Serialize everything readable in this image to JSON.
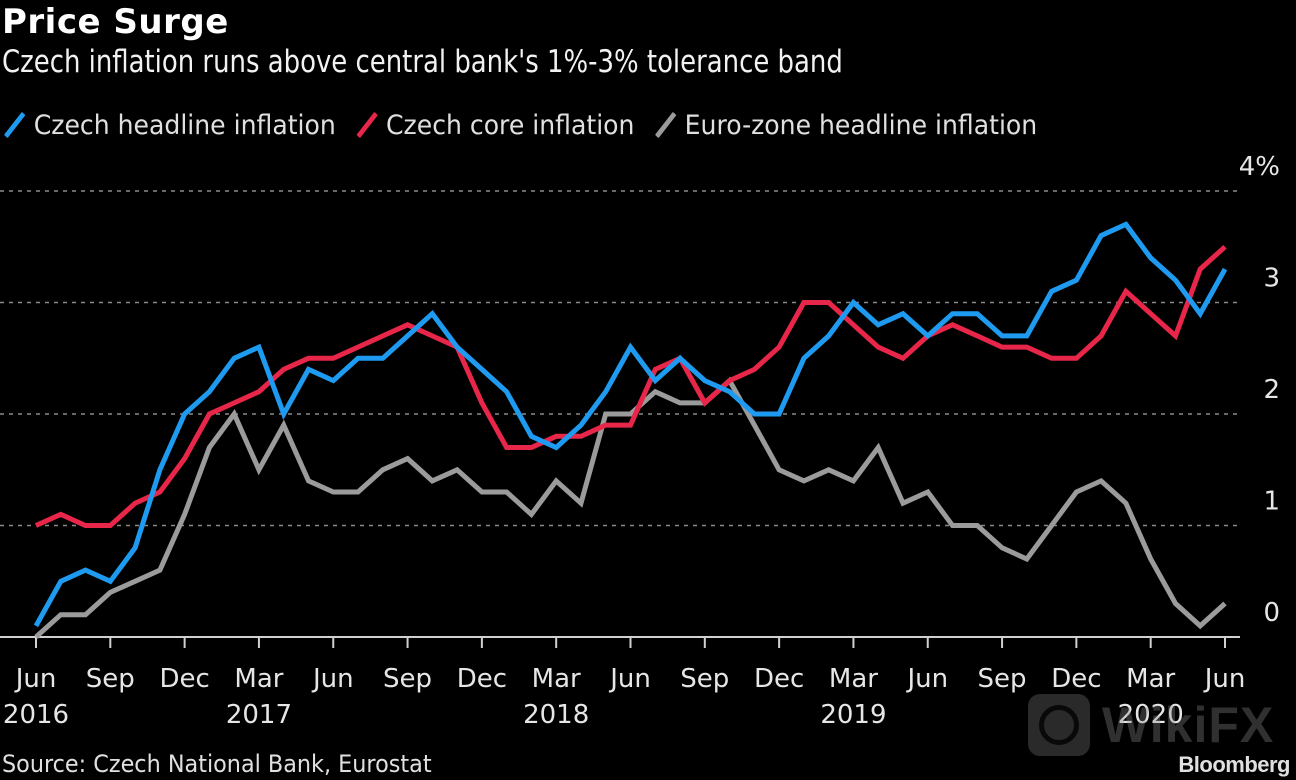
{
  "header": {
    "title": "Price Surge",
    "subtitle": "Czech inflation runs above central bank's 1%-3% tolerance band"
  },
  "footer": {
    "source": "Source: Czech National Bank, Eurostat",
    "brand": "Bloomberg",
    "watermark": "WikiFX"
  },
  "chart_data": {
    "type": "line",
    "title": "Price Surge",
    "subtitle": "Czech inflation runs above central bank's 1%-3% tolerance band",
    "xlabel": "",
    "ylabel": "",
    "ylim": [
      0,
      4
    ],
    "y_ticks": [
      {
        "value": 0,
        "label": "0"
      },
      {
        "value": 1,
        "label": "1"
      },
      {
        "value": 2,
        "label": "2"
      },
      {
        "value": 3,
        "label": "3"
      },
      {
        "value": 4,
        "label": "4%"
      }
    ],
    "y_axis_side": "right",
    "grid": true,
    "legend_position": "top-left",
    "x_start": "2016-06",
    "x_end": "2020-06",
    "x_ticks": [
      {
        "month_index": 0,
        "label": "Jun",
        "year": "2016"
      },
      {
        "month_index": 3,
        "label": "Sep",
        "year": ""
      },
      {
        "month_index": 6,
        "label": "Dec",
        "year": ""
      },
      {
        "month_index": 9,
        "label": "Mar",
        "year": "2017"
      },
      {
        "month_index": 12,
        "label": "Jun",
        "year": ""
      },
      {
        "month_index": 15,
        "label": "Sep",
        "year": ""
      },
      {
        "month_index": 18,
        "label": "Dec",
        "year": ""
      },
      {
        "month_index": 21,
        "label": "Mar",
        "year": "2018"
      },
      {
        "month_index": 24,
        "label": "Jun",
        "year": ""
      },
      {
        "month_index": 27,
        "label": "Sep",
        "year": ""
      },
      {
        "month_index": 30,
        "label": "Dec",
        "year": ""
      },
      {
        "month_index": 33,
        "label": "Mar",
        "year": "2019"
      },
      {
        "month_index": 36,
        "label": "Jun",
        "year": ""
      },
      {
        "month_index": 39,
        "label": "Sep",
        "year": ""
      },
      {
        "month_index": 42,
        "label": "Dec",
        "year": ""
      },
      {
        "month_index": 45,
        "label": "Mar",
        "year": "2020"
      },
      {
        "month_index": 48,
        "label": "Jun",
        "year": ""
      }
    ],
    "series": [
      {
        "name": "Czech headline inflation",
        "color": "#1e9bf0",
        "values": [
          0.1,
          0.5,
          0.6,
          0.5,
          0.8,
          1.5,
          2.0,
          2.2,
          2.5,
          2.6,
          2.0,
          2.4,
          2.3,
          2.5,
          2.5,
          2.7,
          2.9,
          2.6,
          2.4,
          2.2,
          1.8,
          1.7,
          1.9,
          2.2,
          2.6,
          2.3,
          2.5,
          2.3,
          2.2,
          2.0,
          2.0,
          2.5,
          2.7,
          3.0,
          2.8,
          2.9,
          2.7,
          2.9,
          2.9,
          2.7,
          2.7,
          3.1,
          3.2,
          3.6,
          3.7,
          3.4,
          3.2,
          2.9,
          3.3
        ]
      },
      {
        "name": "Czech core inflation",
        "color": "#e8264a",
        "values": [
          1.0,
          1.1,
          1.0,
          1.0,
          1.2,
          1.3,
          1.6,
          2.0,
          2.1,
          2.2,
          2.4,
          2.5,
          2.5,
          2.6,
          2.7,
          2.8,
          2.7,
          2.6,
          2.1,
          1.7,
          1.7,
          1.8,
          1.8,
          1.9,
          1.9,
          2.4,
          2.5,
          2.1,
          2.3,
          2.4,
          2.6,
          3.0,
          3.0,
          2.8,
          2.6,
          2.5,
          2.7,
          2.8,
          2.7,
          2.6,
          2.6,
          2.5,
          2.5,
          2.7,
          3.1,
          2.9,
          2.7,
          3.3,
          3.5
        ]
      },
      {
        "name": "Euro-zone headline inflation",
        "color": "#9b9b9b",
        "values": [
          0.0,
          0.2,
          0.2,
          0.4,
          0.5,
          0.6,
          1.1,
          1.7,
          2.0,
          1.5,
          1.9,
          1.4,
          1.3,
          1.3,
          1.5,
          1.6,
          1.4,
          1.5,
          1.3,
          1.3,
          1.1,
          1.4,
          1.2,
          2.0,
          2.0,
          2.2,
          2.1,
          2.1,
          2.3,
          1.9,
          1.5,
          1.4,
          1.5,
          1.4,
          1.7,
          1.2,
          1.3,
          1.0,
          1.0,
          0.8,
          0.7,
          1.0,
          1.3,
          1.4,
          1.2,
          0.7,
          0.3,
          0.1,
          0.3
        ]
      }
    ]
  }
}
